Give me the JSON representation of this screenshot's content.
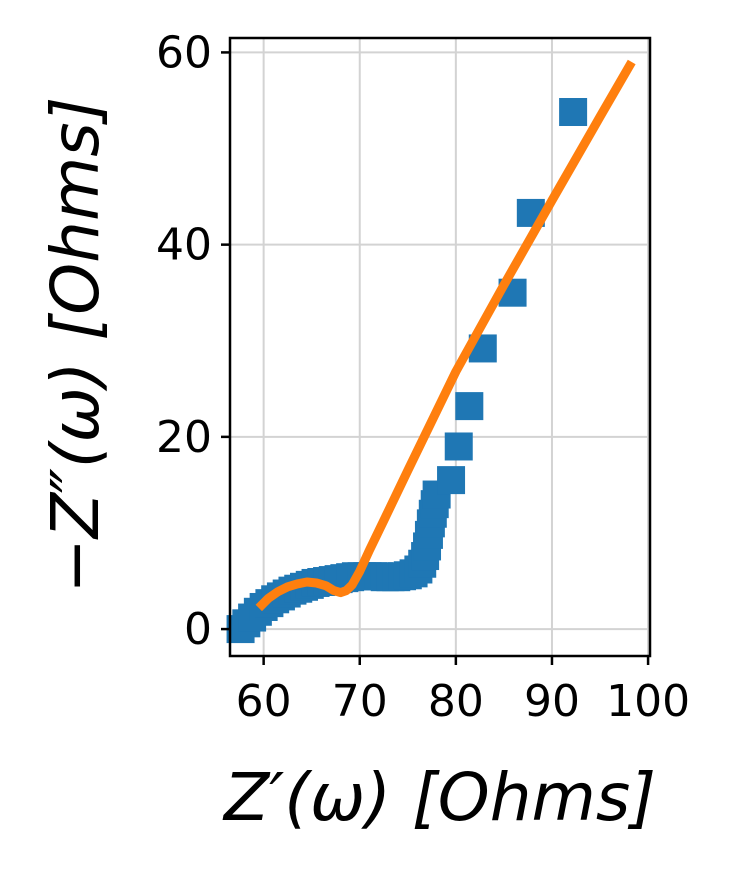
{
  "chart_data": {
    "type": "scatter",
    "xlabel": "Z′(ω) [Ohms]",
    "ylabel": "−Z″(ω) [Ohms]",
    "xlim": [
      56.5,
      100.2
    ],
    "ylim": [
      -2.8,
      61.5
    ],
    "xticks": [
      60,
      70,
      80,
      90,
      100
    ],
    "yticks": [
      0,
      20,
      40,
      60
    ],
    "grid": true,
    "series": [
      {
        "kind": "scatter",
        "marker": "square",
        "color": "#1f77b4",
        "points": [
          [
            57.6,
            0.0
          ],
          [
            58.2,
            0.6
          ],
          [
            58.8,
            1.2
          ],
          [
            59.4,
            1.8
          ],
          [
            60.0,
            2.3
          ],
          [
            60.6,
            2.7
          ],
          [
            61.2,
            3.1
          ],
          [
            61.8,
            3.4
          ],
          [
            62.4,
            3.7
          ],
          [
            63.0,
            4.0
          ],
          [
            63.6,
            4.2
          ],
          [
            64.2,
            4.4
          ],
          [
            64.8,
            4.6
          ],
          [
            65.4,
            4.8
          ],
          [
            66.0,
            4.9
          ],
          [
            66.6,
            5.0
          ],
          [
            67.2,
            5.1
          ],
          [
            67.8,
            5.2
          ],
          [
            68.4,
            5.3
          ],
          [
            69.0,
            5.4
          ],
          [
            69.6,
            5.5
          ],
          [
            70.2,
            5.5
          ],
          [
            70.8,
            5.5
          ],
          [
            71.4,
            5.5
          ],
          [
            72.0,
            5.5
          ],
          [
            72.6,
            5.4
          ],
          [
            73.2,
            5.4
          ],
          [
            73.8,
            5.4
          ],
          [
            74.4,
            5.5
          ],
          [
            75.0,
            5.6
          ],
          [
            75.6,
            5.8
          ],
          [
            76.1,
            6.2
          ],
          [
            76.5,
            6.8
          ],
          [
            76.8,
            7.6
          ],
          [
            77.0,
            8.6
          ],
          [
            77.2,
            9.8
          ],
          [
            77.4,
            11.0
          ],
          [
            77.6,
            12.0
          ],
          [
            77.8,
            13.0
          ],
          [
            78.0,
            14.0
          ],
          [
            79.5,
            15.5
          ],
          [
            80.3,
            19.0
          ],
          [
            81.4,
            23.2
          ],
          [
            82.8,
            29.2
          ],
          [
            85.9,
            35.0
          ],
          [
            87.8,
            43.3
          ],
          [
            92.2,
            53.8
          ]
        ]
      },
      {
        "kind": "line",
        "color": "#ff7f0e",
        "points": [
          [
            59.5,
            2.2
          ],
          [
            60.5,
            3.2
          ],
          [
            61.5,
            3.9
          ],
          [
            62.5,
            4.4
          ],
          [
            63.5,
            4.7
          ],
          [
            64.5,
            4.9
          ],
          [
            65.5,
            4.8
          ],
          [
            66.5,
            4.5
          ],
          [
            67.3,
            4.0
          ],
          [
            68.0,
            3.8
          ],
          [
            68.6,
            4.0
          ],
          [
            69.2,
            4.6
          ],
          [
            70.0,
            6.0
          ],
          [
            71.0,
            8.2
          ],
          [
            72.5,
            11.3
          ],
          [
            75.0,
            16.5
          ],
          [
            80.0,
            26.8
          ],
          [
            85.0,
            35.8
          ],
          [
            90.0,
            44.6
          ],
          [
            95.0,
            53.3
          ],
          [
            98.3,
            59.0
          ]
        ]
      }
    ]
  }
}
